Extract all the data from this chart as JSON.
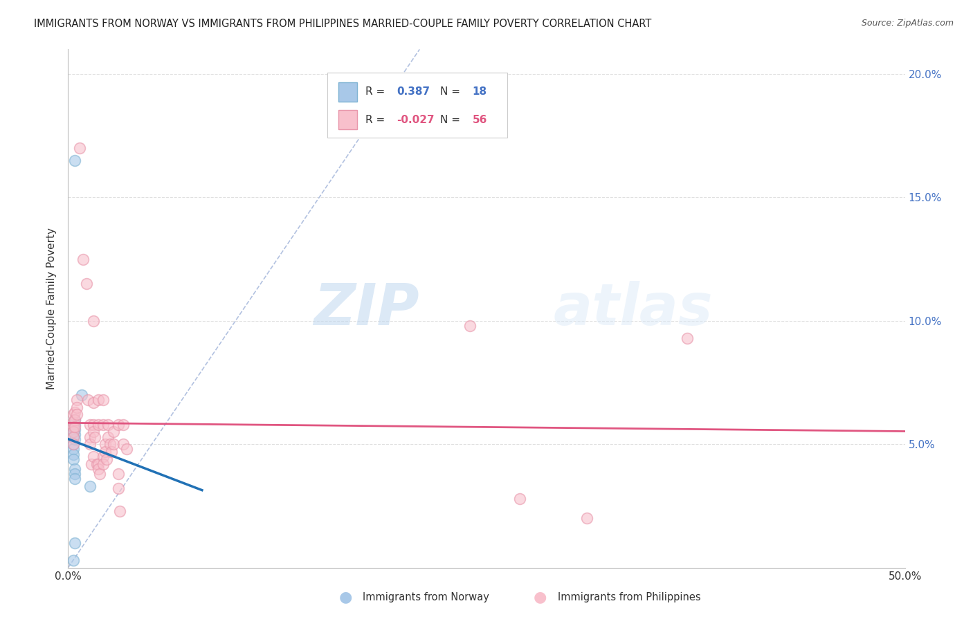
{
  "title": "IMMIGRANTS FROM NORWAY VS IMMIGRANTS FROM PHILIPPINES MARRIED-COUPLE FAMILY POVERTY CORRELATION CHART",
  "source": "Source: ZipAtlas.com",
  "ylabel": "Married-Couple Family Poverty",
  "legend_norway": "Immigrants from Norway",
  "legend_philippines": "Immigrants from Philippines",
  "norway_R": "0.387",
  "norway_N": "18",
  "philippines_R": "-0.027",
  "philippines_N": "56",
  "norway_color": "#a8c8e8",
  "norway_edge_color": "#7fb3d3",
  "philippines_color": "#f8c0cc",
  "philippines_edge_color": "#e896aa",
  "norway_line_color": "#2171b5",
  "philippines_line_color": "#e05580",
  "ref_line_color": "#aabbdd",
  "norway_scatter": [
    [
      0.004,
      0.165
    ],
    [
      0.008,
      0.07
    ],
    [
      0.003,
      0.055
    ],
    [
      0.003,
      0.05
    ],
    [
      0.003,
      0.048
    ],
    [
      0.003,
      0.046
    ],
    [
      0.003,
      0.044
    ],
    [
      0.004,
      0.06
    ],
    [
      0.004,
      0.058
    ],
    [
      0.004,
      0.056
    ],
    [
      0.004,
      0.054
    ],
    [
      0.004,
      0.052
    ],
    [
      0.004,
      0.04
    ],
    [
      0.004,
      0.038
    ],
    [
      0.004,
      0.036
    ],
    [
      0.013,
      0.033
    ],
    [
      0.004,
      0.01
    ],
    [
      0.003,
      0.003
    ]
  ],
  "philippines_scatter": [
    [
      0.003,
      0.062
    ],
    [
      0.003,
      0.059
    ],
    [
      0.003,
      0.057
    ],
    [
      0.003,
      0.055
    ],
    [
      0.003,
      0.053
    ],
    [
      0.003,
      0.05
    ],
    [
      0.004,
      0.063
    ],
    [
      0.004,
      0.06
    ],
    [
      0.004,
      0.057
    ],
    [
      0.005,
      0.068
    ],
    [
      0.005,
      0.065
    ],
    [
      0.005,
      0.062
    ],
    [
      0.007,
      0.17
    ],
    [
      0.009,
      0.125
    ],
    [
      0.011,
      0.115
    ],
    [
      0.012,
      0.068
    ],
    [
      0.013,
      0.058
    ],
    [
      0.013,
      0.053
    ],
    [
      0.013,
      0.05
    ],
    [
      0.014,
      0.042
    ],
    [
      0.015,
      0.1
    ],
    [
      0.015,
      0.067
    ],
    [
      0.015,
      0.058
    ],
    [
      0.015,
      0.055
    ],
    [
      0.015,
      0.045
    ],
    [
      0.016,
      0.053
    ],
    [
      0.017,
      0.042
    ],
    [
      0.018,
      0.068
    ],
    [
      0.018,
      0.058
    ],
    [
      0.018,
      0.042
    ],
    [
      0.018,
      0.04
    ],
    [
      0.019,
      0.038
    ],
    [
      0.021,
      0.068
    ],
    [
      0.021,
      0.058
    ],
    [
      0.021,
      0.045
    ],
    [
      0.021,
      0.042
    ],
    [
      0.022,
      0.05
    ],
    [
      0.022,
      0.047
    ],
    [
      0.023,
      0.044
    ],
    [
      0.024,
      0.058
    ],
    [
      0.024,
      0.053
    ],
    [
      0.025,
      0.05
    ],
    [
      0.026,
      0.047
    ],
    [
      0.027,
      0.055
    ],
    [
      0.027,
      0.05
    ],
    [
      0.03,
      0.058
    ],
    [
      0.03,
      0.038
    ],
    [
      0.03,
      0.032
    ],
    [
      0.031,
      0.023
    ],
    [
      0.033,
      0.058
    ],
    [
      0.033,
      0.05
    ],
    [
      0.035,
      0.048
    ],
    [
      0.24,
      0.098
    ],
    [
      0.27,
      0.028
    ],
    [
      0.31,
      0.02
    ],
    [
      0.37,
      0.093
    ]
  ],
  "xlim": [
    0,
    0.5
  ],
  "ylim": [
    0,
    0.21
  ],
  "xticks": [
    0.0,
    0.1,
    0.2,
    0.3,
    0.4,
    0.5
  ],
  "xtick_labels": [
    "0.0%",
    "",
    "",
    "",
    "",
    "50.0%"
  ],
  "yticks": [
    0.0,
    0.05,
    0.1,
    0.15,
    0.2
  ],
  "ytick_labels_right": [
    "0.0%",
    "5.0%",
    "10.0%",
    "15.0%",
    "20.0%"
  ],
  "watermark_zip": "ZIP",
  "watermark_atlas": "atlas",
  "background_color": "#ffffff",
  "grid_color": "#e0e0e0",
  "dot_size": 130,
  "dot_alpha": 0.6,
  "dot_linewidth": 1.2
}
